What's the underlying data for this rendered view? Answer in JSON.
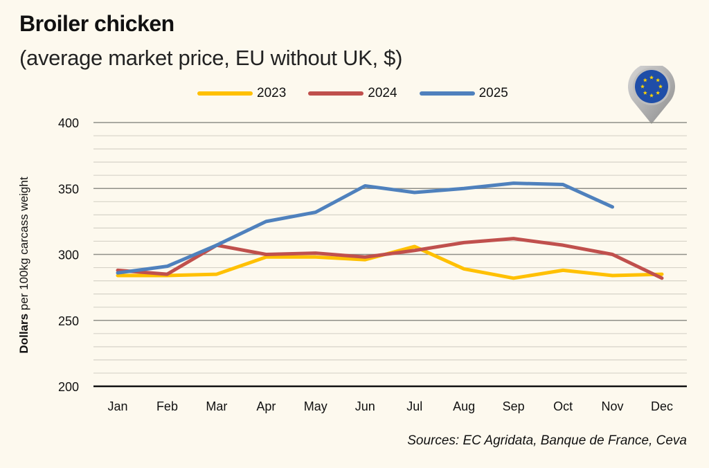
{
  "header": {
    "title": "Broiler chicken",
    "subtitle": "(average market price, EU without UK, $)"
  },
  "badge": {
    "icon": "eu-flag-pin-icon"
  },
  "footer": {
    "source": "Sources: EC Agridata, Banque de France, Ceva"
  },
  "colors": {
    "background": "#fdf9ee",
    "s2023": "#FFC000",
    "s2024": "#C0504D",
    "s2025": "#4F81BD",
    "eu_blue": "#1f4ea8",
    "eu_star": "#ffd500"
  },
  "chart_data": {
    "type": "line",
    "title": "Broiler chicken",
    "subtitle": "(average market price, EU without UK, $)",
    "xlabel": "",
    "ylabel_bold": "Dollars",
    "ylabel_rest": " per 100kg carcass weight",
    "ylabel": "Dollars per 100kg carcass weight",
    "ylim": [
      200,
      400
    ],
    "yticks": [
      200,
      250,
      300,
      350,
      400
    ],
    "minor_grid_step": 10,
    "grid": true,
    "legend_position": "top-center",
    "categories": [
      "Jan",
      "Feb",
      "Mar",
      "Apr",
      "May",
      "Jun",
      "Jul",
      "Aug",
      "Sep",
      "Oct",
      "Nov",
      "Dec"
    ],
    "series": [
      {
        "name": "2023",
        "color": "#FFC000",
        "values": [
          284,
          284,
          285,
          298,
          298,
          296,
          306,
          289,
          282,
          288,
          284,
          285
        ]
      },
      {
        "name": "2024",
        "color": "#C0504D",
        "values": [
          288,
          285,
          307,
          300,
          301,
          298,
          303,
          309,
          312,
          307,
          300,
          282
        ]
      },
      {
        "name": "2025",
        "color": "#4F81BD",
        "values": [
          286,
          291,
          307,
          325,
          332,
          352,
          347,
          350,
          354,
          353,
          336,
          null
        ]
      }
    ]
  }
}
